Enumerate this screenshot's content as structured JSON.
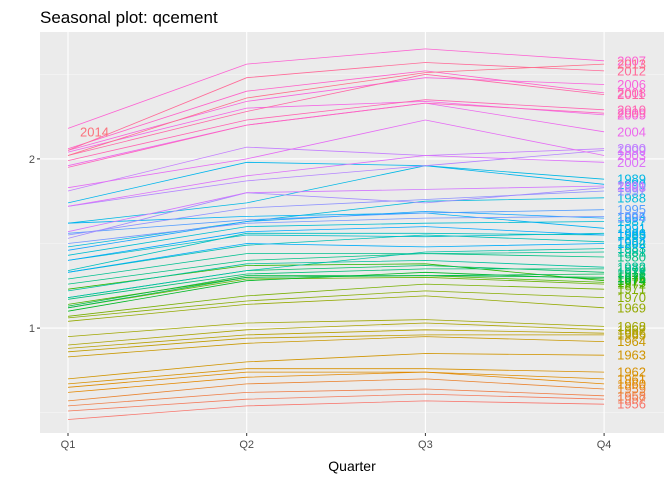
{
  "chart_data": {
    "type": "line",
    "title": "Seasonal plot: qcement",
    "xlabel": "Quarter",
    "ylabel": "",
    "categories": [
      "Q1",
      "Q2",
      "Q3",
      "Q4"
    ],
    "ylim": [
      0.38,
      2.75
    ],
    "y_ticks": [
      1,
      2
    ],
    "y_tick_labels": [
      "1",
      "2"
    ],
    "grid": true,
    "legend": "none",
    "series": [
      {
        "name": "1956",
        "values": [
          0.46,
          0.54,
          0.57,
          0.55
        ]
      },
      {
        "name": "1957",
        "values": [
          0.51,
          0.58,
          0.61,
          0.58
        ]
      },
      {
        "name": "1958",
        "values": [
          0.54,
          0.62,
          0.64,
          0.6
        ]
      },
      {
        "name": "1959",
        "values": [
          0.57,
          0.67,
          0.7,
          0.64
        ]
      },
      {
        "name": "1960",
        "values": [
          0.62,
          0.71,
          0.74,
          0.67
        ]
      },
      {
        "name": "1961",
        "values": [
          0.65,
          0.74,
          0.74,
          0.7
        ]
      },
      {
        "name": "1962",
        "values": [
          0.67,
          0.76,
          0.76,
          0.74
        ]
      },
      {
        "name": "1963",
        "values": [
          0.7,
          0.8,
          0.85,
          0.84
        ]
      },
      {
        "name": "1964",
        "values": [
          0.83,
          0.91,
          0.95,
          0.92
        ]
      },
      {
        "name": "1965",
        "values": [
          0.86,
          0.94,
          0.96,
          0.96
        ]
      },
      {
        "name": "1966",
        "values": [
          0.88,
          0.96,
          0.99,
          0.97
        ]
      },
      {
        "name": "1967",
        "values": [
          0.9,
          0.99,
          1.03,
          0.99
        ]
      },
      {
        "name": "1968",
        "values": [
          0.95,
          1.03,
          1.05,
          1.01
        ]
      },
      {
        "name": "1969",
        "values": [
          1.04,
          1.14,
          1.19,
          1.12
        ]
      },
      {
        "name": "1970",
        "values": [
          1.06,
          1.16,
          1.22,
          1.18
        ]
      },
      {
        "name": "1971",
        "values": [
          1.07,
          1.19,
          1.26,
          1.23
        ]
      },
      {
        "name": "1972",
        "values": [
          1.12,
          1.29,
          1.3,
          1.26
        ]
      },
      {
        "name": "1973",
        "values": [
          1.14,
          1.3,
          1.31,
          1.27
        ]
      },
      {
        "name": "1974",
        "values": [
          1.23,
          1.37,
          1.38,
          1.28
        ]
      },
      {
        "name": "1975",
        "values": [
          1.1,
          1.28,
          1.33,
          1.29
        ]
      },
      {
        "name": "1976",
        "values": [
          1.13,
          1.31,
          1.31,
          1.3
        ]
      },
      {
        "name": "1977",
        "values": [
          1.12,
          1.3,
          1.31,
          1.32
        ]
      },
      {
        "name": "1978",
        "values": [
          1.18,
          1.34,
          1.37,
          1.33
        ]
      },
      {
        "name": "1979",
        "values": [
          1.17,
          1.32,
          1.35,
          1.35
        ]
      },
      {
        "name": "1980",
        "values": [
          1.26,
          1.4,
          1.44,
          1.42
        ]
      },
      {
        "name": "1981",
        "values": [
          1.29,
          1.44,
          1.44,
          1.45
        ]
      },
      {
        "name": "1982",
        "values": [
          1.22,
          1.38,
          1.4,
          1.36
        ]
      },
      {
        "name": "1983",
        "values": [
          1.18,
          1.34,
          1.45,
          1.47
        ]
      },
      {
        "name": "1984",
        "values": [
          1.33,
          1.49,
          1.55,
          1.51
        ]
      },
      {
        "name": "1985",
        "values": [
          1.34,
          1.56,
          1.56,
          1.55
        ]
      },
      {
        "name": "1986",
        "values": [
          1.4,
          1.55,
          1.54,
          1.56
        ]
      },
      {
        "name": "1987",
        "values": [
          1.43,
          1.6,
          1.62,
          1.63
        ]
      },
      {
        "name": "1988",
        "values": [
          1.48,
          1.63,
          1.75,
          1.77
        ]
      },
      {
        "name": "1989",
        "values": [
          1.62,
          1.74,
          1.96,
          1.88
        ]
      },
      {
        "name": "1990",
        "values": [
          1.74,
          1.98,
          1.96,
          1.85
        ]
      },
      {
        "name": "1991",
        "values": [
          1.62,
          1.66,
          1.68,
          1.59
        ]
      },
      {
        "name": "1992",
        "values": [
          1.33,
          1.5,
          1.48,
          1.5
        ]
      },
      {
        "name": "1993",
        "values": [
          1.4,
          1.57,
          1.6,
          1.55
        ]
      },
      {
        "name": "1994",
        "values": [
          1.46,
          1.63,
          1.69,
          1.65
        ]
      },
      {
        "name": "1995",
        "values": [
          1.56,
          1.64,
          1.68,
          1.7
        ]
      },
      {
        "name": "1996",
        "values": [
          1.5,
          1.62,
          1.65,
          1.66
        ]
      },
      {
        "name": "1997",
        "values": [
          1.55,
          1.71,
          1.76,
          1.81
        ]
      },
      {
        "name": "1998",
        "values": [
          1.53,
          1.8,
          1.74,
          1.83
        ]
      },
      {
        "name": "1999",
        "values": [
          1.72,
          1.87,
          1.96,
          2.05
        ]
      },
      {
        "name": "2000",
        "values": [
          1.81,
          2.07,
          2.02,
          2.06
        ]
      },
      {
        "name": "2001",
        "values": [
          1.57,
          1.8,
          1.82,
          1.84
        ]
      },
      {
        "name": "2002",
        "values": [
          1.72,
          1.9,
          2.02,
          1.98
        ]
      },
      {
        "name": "2003",
        "values": [
          1.83,
          2.0,
          2.23,
          2.02
        ]
      },
      {
        "name": "2004",
        "values": [
          1.96,
          2.2,
          2.33,
          2.16
        ]
      },
      {
        "name": "2005",
        "values": [
          2.04,
          2.3,
          2.34,
          2.26
        ]
      },
      {
        "name": "2006",
        "values": [
          2.05,
          2.34,
          2.48,
          2.44
        ]
      },
      {
        "name": "2007",
        "values": [
          2.18,
          2.56,
          2.65,
          2.58
        ]
      },
      {
        "name": "2008",
        "values": [
          2.06,
          2.4,
          2.52,
          2.39
        ]
      },
      {
        "name": "2009",
        "values": [
          1.95,
          2.2,
          2.33,
          2.27
        ]
      },
      {
        "name": "2010",
        "values": [
          1.99,
          2.23,
          2.35,
          2.29
        ]
      },
      {
        "name": "2011",
        "values": [
          2.02,
          2.28,
          2.5,
          2.38
        ]
      },
      {
        "name": "2012",
        "values": [
          2.05,
          2.48,
          2.57,
          2.52
        ]
      },
      {
        "name": "2013",
        "values": [
          2.02,
          2.36,
          2.51,
          2.56
        ]
      },
      {
        "name": "2014",
        "values": [
          2.12,
          null,
          null,
          null
        ]
      }
    ]
  }
}
